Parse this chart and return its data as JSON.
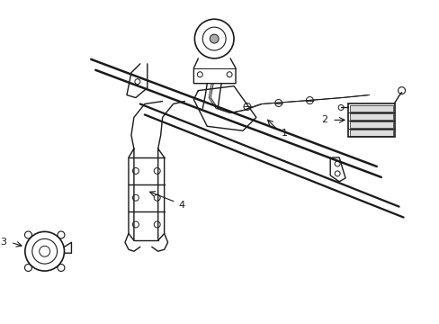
{
  "bg_color": "#ffffff",
  "line_color": "#1a1a1a",
  "fig_width": 4.89,
  "fig_height": 3.6,
  "dpi": 100,
  "label_fs": 8,
  "lw_beam": 1.8,
  "lw_part": 1.0,
  "lw_thin": 0.7
}
